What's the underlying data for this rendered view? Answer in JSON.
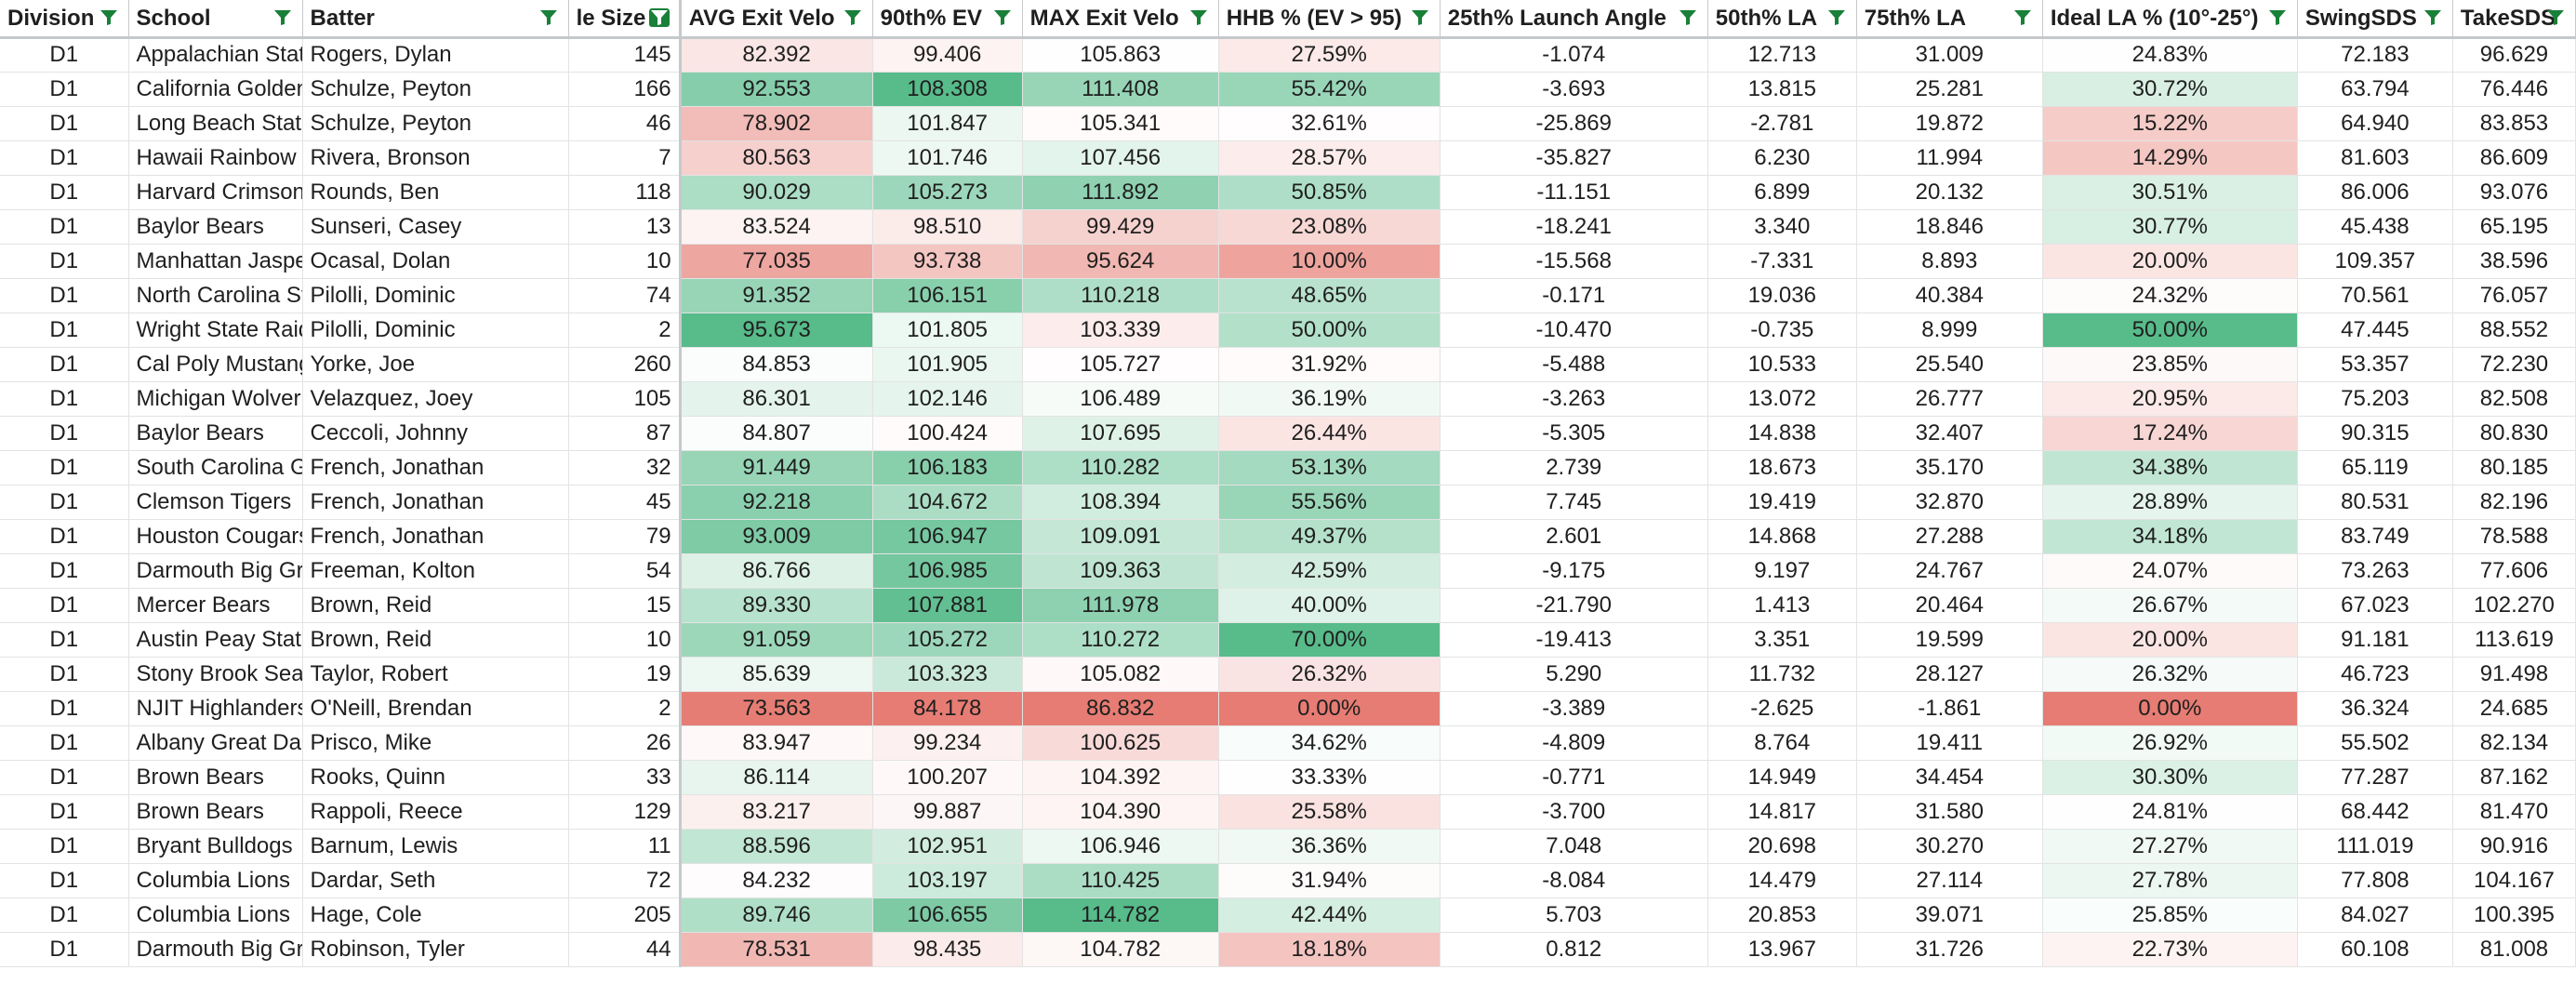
{
  "headers": [
    {
      "label": "Division",
      "filter_active": false
    },
    {
      "label": "School",
      "filter_active": false
    },
    {
      "label": "Batter",
      "filter_active": false
    },
    {
      "label": "le Size",
      "filter_active": true
    },
    {
      "label": "AVG Exit Velo",
      "filter_active": false
    },
    {
      "label": "90th% EV",
      "filter_active": false
    },
    {
      "label": "MAX Exit Velo",
      "filter_active": false
    },
    {
      "label": "HHB % (EV > 95)",
      "filter_active": false
    },
    {
      "label": "25th% Launch Angle",
      "filter_active": false
    },
    {
      "label": "50th% LA",
      "filter_active": false
    },
    {
      "label": "75th% LA",
      "filter_active": false
    },
    {
      "label": "Ideal LA % (10°-25°)",
      "filter_active": false
    },
    {
      "label": "SwingSDS",
      "filter_active": false
    },
    {
      "label": "TakeSDS",
      "filter_active": false
    }
  ],
  "icons": {
    "filter": "filter-icon"
  },
  "colors": {
    "green_dark": "#57bb8a",
    "red_dark": "#e67c73",
    "white": "#ffffff",
    "accent": "#188038"
  },
  "rows": [
    [
      "D1",
      "Appalachian State",
      "Rogers, Dylan",
      "145",
      "82.392",
      "99.406",
      "105.863",
      "27.59%",
      "-1.074",
      "12.713",
      "31.009",
      "24.83%",
      "72.183",
      "96.629"
    ],
    [
      "D1",
      "California Golden Bears",
      "Schulze, Peyton",
      "166",
      "92.553",
      "108.308",
      "111.408",
      "55.42%",
      "-3.693",
      "13.815",
      "25.281",
      "30.72%",
      "63.794",
      "76.446"
    ],
    [
      "D1",
      "Long Beach State",
      "Schulze, Peyton",
      "46",
      "78.902",
      "101.847",
      "105.341",
      "32.61%",
      "-25.869",
      "-2.781",
      "19.872",
      "15.22%",
      "64.940",
      "83.853"
    ],
    [
      "D1",
      "Hawaii Rainbow Warriors",
      "Rivera, Bronson",
      "7",
      "80.563",
      "101.746",
      "107.456",
      "28.57%",
      "-35.827",
      "6.230",
      "11.994",
      "14.29%",
      "81.603",
      "86.609"
    ],
    [
      "D1",
      "Harvard Crimson",
      "Rounds, Ben",
      "118",
      "90.029",
      "105.273",
      "111.892",
      "50.85%",
      "-11.151",
      "6.899",
      "20.132",
      "30.51%",
      "86.006",
      "93.076"
    ],
    [
      "D1",
      "Baylor Bears",
      "Sunseri, Casey",
      "13",
      "83.524",
      "98.510",
      "99.429",
      "23.08%",
      "-18.241",
      "3.340",
      "18.846",
      "30.77%",
      "45.438",
      "65.195"
    ],
    [
      "D1",
      "Manhattan Jaspers",
      "Ocasal, Dolan",
      "10",
      "77.035",
      "93.738",
      "95.624",
      "10.00%",
      "-15.568",
      "-7.331",
      "8.893",
      "20.00%",
      "109.357",
      "38.596"
    ],
    [
      "D1",
      "North Carolina State",
      "Pilolli, Dominic",
      "74",
      "91.352",
      "106.151",
      "110.218",
      "48.65%",
      "-0.171",
      "19.036",
      "40.384",
      "24.32%",
      "70.561",
      "76.057"
    ],
    [
      "D1",
      "Wright State Raiders",
      "Pilolli, Dominic",
      "2",
      "95.673",
      "101.805",
      "103.339",
      "50.00%",
      "-10.470",
      "-0.735",
      "8.999",
      "50.00%",
      "47.445",
      "88.552"
    ],
    [
      "D1",
      "Cal Poly Mustangs",
      "Yorke, Joe",
      "260",
      "84.853",
      "101.905",
      "105.727",
      "31.92%",
      "-5.488",
      "10.533",
      "25.540",
      "23.85%",
      "53.357",
      "72.230"
    ],
    [
      "D1",
      "Michigan Wolverines",
      "Velazquez, Joey",
      "105",
      "86.301",
      "102.146",
      "106.489",
      "36.19%",
      "-3.263",
      "13.072",
      "26.777",
      "20.95%",
      "75.203",
      "82.508"
    ],
    [
      "D1",
      "Baylor Bears",
      "Ceccoli, Johnny",
      "87",
      "84.807",
      "100.424",
      "107.695",
      "26.44%",
      "-5.305",
      "14.838",
      "32.407",
      "17.24%",
      "90.315",
      "80.830"
    ],
    [
      "D1",
      "South Carolina Gamecocks",
      "French, Jonathan",
      "32",
      "91.449",
      "106.183",
      "110.282",
      "53.13%",
      "2.739",
      "18.673",
      "35.170",
      "34.38%",
      "65.119",
      "80.185"
    ],
    [
      "D1",
      "Clemson Tigers",
      "French, Jonathan",
      "45",
      "92.218",
      "104.672",
      "108.394",
      "55.56%",
      "7.745",
      "19.419",
      "32.870",
      "28.89%",
      "80.531",
      "82.196"
    ],
    [
      "D1",
      "Houston Cougars",
      "French, Jonathan",
      "79",
      "93.009",
      "106.947",
      "109.091",
      "49.37%",
      "2.601",
      "14.868",
      "27.288",
      "34.18%",
      "83.749",
      "78.588"
    ],
    [
      "D1",
      "Darmouth Big Green",
      "Freeman, Kolton",
      "54",
      "86.766",
      "106.985",
      "109.363",
      "42.59%",
      "-9.175",
      "9.197",
      "24.767",
      "24.07%",
      "73.263",
      "77.606"
    ],
    [
      "D1",
      "Mercer Bears",
      "Brown, Reid",
      "15",
      "89.330",
      "107.881",
      "111.978",
      "40.00%",
      "-21.790",
      "1.413",
      "20.464",
      "26.67%",
      "67.023",
      "102.270"
    ],
    [
      "D1",
      "Austin Peay State",
      "Brown, Reid",
      "10",
      "91.059",
      "105.272",
      "110.272",
      "70.00%",
      "-19.413",
      "3.351",
      "19.599",
      "20.00%",
      "91.181",
      "113.619"
    ],
    [
      "D1",
      "Stony Brook Seawolves",
      "Taylor, Robert",
      "19",
      "85.639",
      "103.323",
      "105.082",
      "26.32%",
      "5.290",
      "11.732",
      "28.127",
      "26.32%",
      "46.723",
      "91.498"
    ],
    [
      "D1",
      "NJIT Highlanders",
      "O'Neill, Brendan",
      "2",
      "73.563",
      "84.178",
      "86.832",
      "0.00%",
      "-3.389",
      "-2.625",
      "-1.861",
      "0.00%",
      "36.324",
      "24.685"
    ],
    [
      "D1",
      "Albany Great Danes",
      "Prisco, Mike",
      "26",
      "83.947",
      "99.234",
      "100.625",
      "34.62%",
      "-4.809",
      "8.764",
      "19.411",
      "26.92%",
      "55.502",
      "82.134"
    ],
    [
      "D1",
      "Brown Bears",
      "Rooks, Quinn",
      "33",
      "86.114",
      "100.207",
      "104.392",
      "33.33%",
      "-0.771",
      "14.949",
      "34.454",
      "30.30%",
      "77.287",
      "87.162"
    ],
    [
      "D1",
      "Brown Bears",
      "Rappoli, Reece",
      "129",
      "83.217",
      "99.887",
      "104.390",
      "25.58%",
      "-3.700",
      "14.817",
      "31.580",
      "24.81%",
      "68.442",
      "81.470"
    ],
    [
      "D1",
      "Bryant Bulldogs",
      "Barnum, Lewis",
      "11",
      "88.596",
      "102.951",
      "106.946",
      "36.36%",
      "7.048",
      "20.698",
      "30.270",
      "27.27%",
      "111.019",
      "90.916"
    ],
    [
      "D1",
      "Columbia Lions",
      "Dardar, Seth",
      "72",
      "84.232",
      "103.197",
      "110.425",
      "31.94%",
      "-8.084",
      "14.479",
      "27.114",
      "27.78%",
      "77.808",
      "104.167"
    ],
    [
      "D1",
      "Columbia Lions",
      "Hage, Cole",
      "205",
      "89.746",
      "106.655",
      "114.782",
      "42.44%",
      "5.703",
      "20.853",
      "39.071",
      "25.85%",
      "84.027",
      "100.395"
    ],
    [
      "D1",
      "Darmouth Big Green",
      "Robinson, Tyler",
      "44",
      "78.531",
      "98.435",
      "104.782",
      "18.18%",
      "0.812",
      "13.967",
      "31.726",
      "22.73%",
      "60.108",
      "81.008"
    ]
  ],
  "heat": {
    "4": {
      "min": 73.5,
      "mid": 84.5,
      "max": 95.7
    },
    "5": {
      "min": 84.2,
      "mid": 101.0,
      "max": 108.3
    },
    "6": {
      "min": 86.8,
      "mid": 106.0,
      "max": 114.8
    },
    "7": {
      "min": 0,
      "mid": 33.0,
      "max": 70
    },
    "11": {
      "min": 0,
      "mid": 25.0,
      "max": 50
    }
  }
}
